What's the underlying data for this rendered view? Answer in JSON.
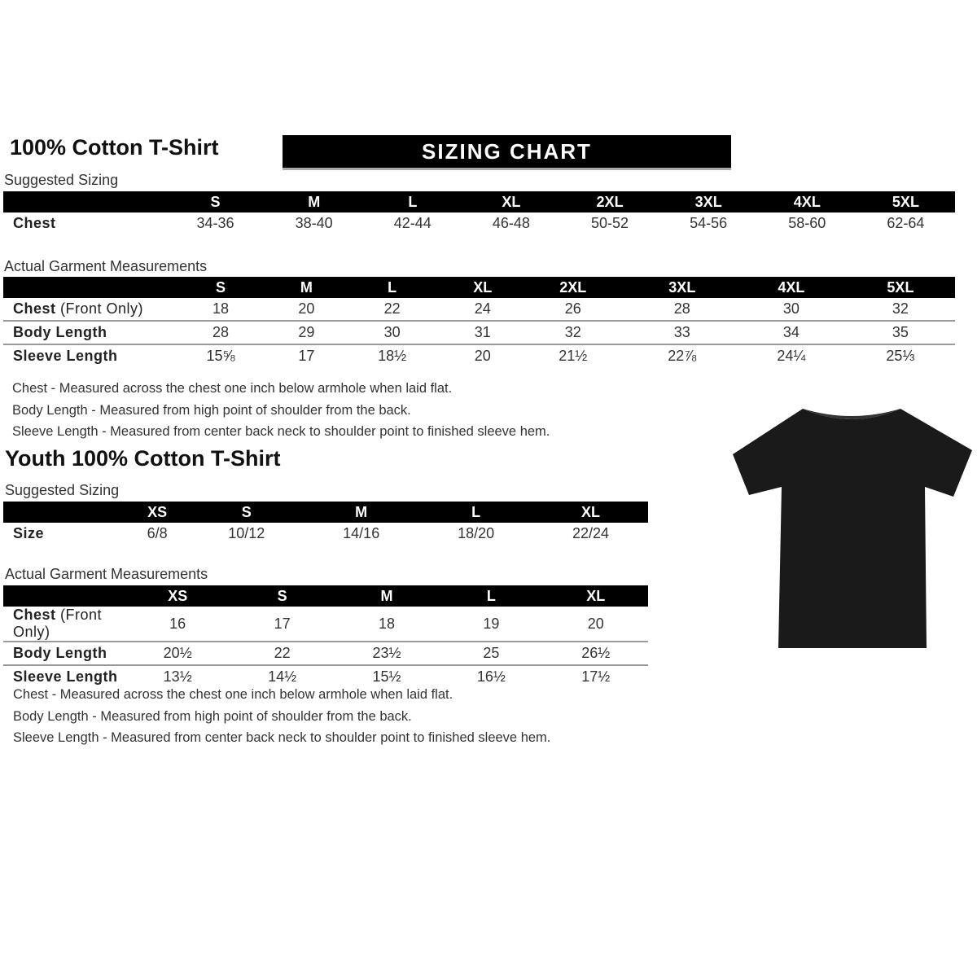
{
  "adult": {
    "title": "100% Cotton T-Shirt",
    "banner": "SIZING CHART",
    "suggested_label": "Suggested Sizing",
    "sizes": [
      "S",
      "M",
      "L",
      "XL",
      "2XL",
      "3XL",
      "4XL",
      "5XL"
    ],
    "suggested_rows": [
      {
        "label": "Chest",
        "values": [
          "34-36",
          "38-40",
          "42-44",
          "46-48",
          "50-52",
          "54-56",
          "58-60",
          "62-64"
        ]
      }
    ],
    "actual_label": "Actual Garment Measurements",
    "actual_rows": [
      {
        "label": "Chest",
        "label_note": "(Front Only)",
        "values": [
          "18",
          "20",
          "22",
          "24",
          "26",
          "28",
          "30",
          "32"
        ]
      },
      {
        "label": "Body Length",
        "values": [
          "28",
          "29",
          "30",
          "31",
          "32",
          "33",
          "34",
          "35"
        ]
      },
      {
        "label": "Sleeve Length",
        "values": [
          "15⅝",
          "17",
          "18½",
          "20",
          "21½",
          "22⅞",
          "24¼",
          "25⅓"
        ]
      }
    ],
    "notes": [
      "Chest - Measured across the chest one inch below armhole when laid flat.",
      "Body Length - Measured from high point of shoulder from the back.",
      "Sleeve Length - Measured from center back neck to shoulder point to finished sleeve hem."
    ]
  },
  "youth": {
    "title": "Youth 100% Cotton T-Shirt",
    "suggested_label": "Suggested Sizing",
    "sizes": [
      "XS",
      "S",
      "M",
      "L",
      "XL"
    ],
    "suggested_rows": [
      {
        "label": "Size",
        "values": [
          "6/8",
          "10/12",
          "14/16",
          "18/20",
          "22/24"
        ]
      }
    ],
    "actual_label": "Actual Garment Measurements",
    "actual_rows": [
      {
        "label": "Chest",
        "label_note": "(Front Only)",
        "values": [
          "16",
          "17",
          "18",
          "19",
          "20"
        ]
      },
      {
        "label": "Body Length",
        "values": [
          "20½",
          "22",
          "23½",
          "25",
          "26½"
        ]
      },
      {
        "label": "Sleeve Length",
        "values": [
          "13½",
          "14½",
          "15½",
          "16½",
          "17½"
        ]
      }
    ],
    "notes": [
      "Chest - Measured across the chest one inch below armhole when laid flat.",
      "Body Length - Measured from high point of shoulder from the back.",
      "Sleeve Length - Measured from center back neck to shoulder point to finished sleeve hem."
    ]
  },
  "colors": {
    "header_bg": "#000000",
    "shirt": "#1a1a1a"
  },
  "image": {
    "icon": "tshirt-icon"
  }
}
